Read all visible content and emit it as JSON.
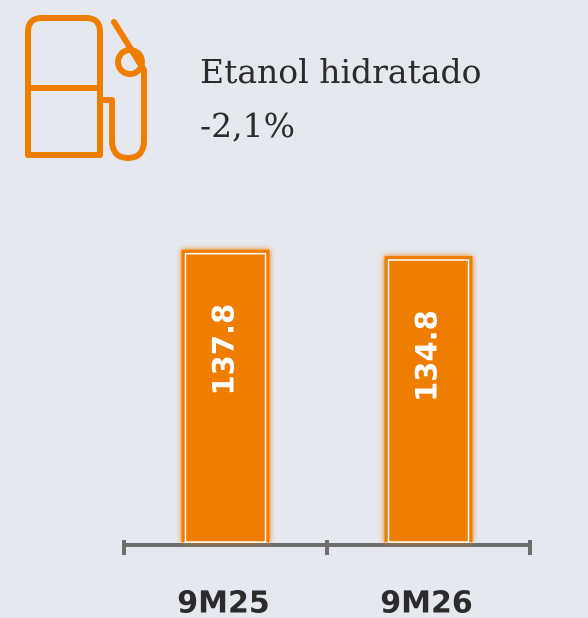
{
  "chart_data": {
    "type": "bar",
    "title": "Etanol hidratado",
    "subtitle": "-2,1%",
    "categories": [
      "9M25",
      "9M26"
    ],
    "values": [
      137.8,
      134.8
    ],
    "color": "#ee7d00",
    "ylim": [
      0,
      140
    ]
  }
}
